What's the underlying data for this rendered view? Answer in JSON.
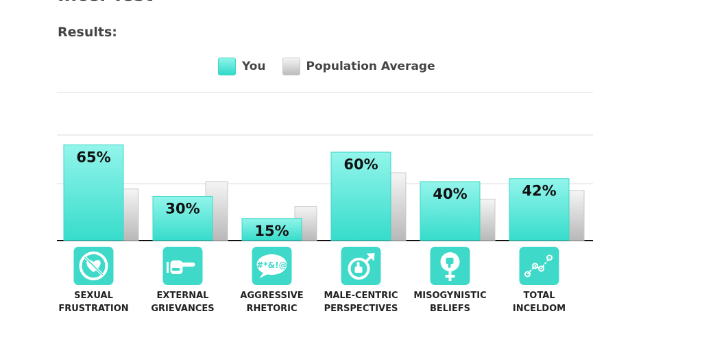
{
  "header": {
    "cut_title": "Incel Test",
    "results_label": "Results:"
  },
  "legend": {
    "you_label": "You",
    "avg_label": "Population Average"
  },
  "colors": {
    "you_top": "#93f5eb",
    "you_bottom": "#36dccb",
    "you_border": "#3cd6c6",
    "avg_top": "#f5f5f5",
    "avg_bottom": "#b8b8b8",
    "icon_bg": "#3ed9c8",
    "gridline": "#dddddd",
    "axis": "#111111"
  },
  "chart_data": {
    "type": "bar",
    "categories": [
      [
        "SEXUAL",
        "FRUSTRATION"
      ],
      [
        "EXTERNAL",
        "GRIEVANCES"
      ],
      [
        "AGGRESSIVE",
        "RHETORIC"
      ],
      [
        "MALE-CENTRIC",
        "PERSPECTIVES"
      ],
      [
        "MISOGYNISTIC",
        "BELIEFS"
      ],
      [
        "TOTAL",
        "INCELDOM"
      ]
    ],
    "icons": [
      "no-heart-icon",
      "pointing-hand-icon",
      "swear-speech-bubble-icon",
      "male-thumbs-up-icon",
      "female-thumbs-down-icon",
      "line-graph-icon"
    ],
    "series": [
      {
        "name": "You",
        "values": [
          65,
          30,
          15,
          60,
          40,
          42
        ],
        "labels": [
          "65%",
          "30%",
          "15%",
          "60%",
          "40%",
          "42%"
        ]
      },
      {
        "name": "Population Average",
        "values": [
          35,
          40,
          23,
          46,
          28,
          34
        ]
      }
    ],
    "ylim": [
      0,
      100
    ],
    "grid": true,
    "legend_position": "top-center",
    "title": "Results:"
  }
}
